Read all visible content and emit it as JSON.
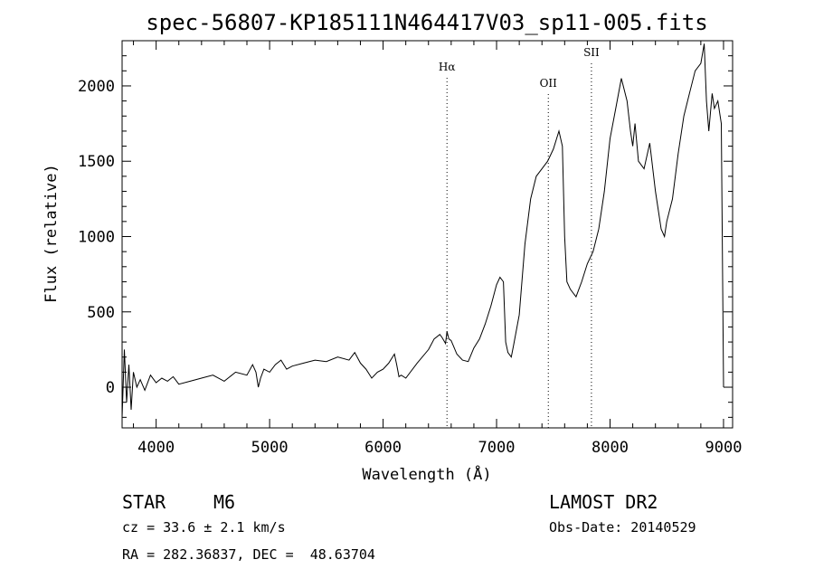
{
  "chart_data": {
    "type": "line",
    "title": "spec-56807-KP185111N464417V03_sp11-005.fits",
    "xlabel": "Wavelength (Å)",
    "ylabel": "Flux (relative)",
    "xlim": [
      3700,
      9080
    ],
    "ylim": [
      -270,
      2300
    ],
    "xticks": [
      4000,
      5000,
      6000,
      7000,
      8000,
      9000
    ],
    "yticks": [
      0,
      500,
      1000,
      1500,
      2000
    ],
    "grid": false,
    "series": [
      {
        "color": "#000000",
        "x": [
          3700,
          3720,
          3740,
          3760,
          3780,
          3800,
          3830,
          3860,
          3900,
          3950,
          4000,
          4050,
          4100,
          4150,
          4200,
          4300,
          4400,
          4500,
          4600,
          4700,
          4800,
          4850,
          4880,
          4900,
          4920,
          4950,
          5000,
          5050,
          5100,
          5150,
          5200,
          5300,
          5400,
          5500,
          5600,
          5700,
          5750,
          5800,
          5850,
          5900,
          5950,
          6000,
          6050,
          6100,
          6120,
          6140,
          6160,
          6200,
          6300,
          6400,
          6450,
          6500,
          6520,
          6550,
          6563,
          6580,
          6600,
          6650,
          6700,
          6750,
          6800,
          6850,
          6900,
          6950,
          7000,
          7030,
          7060,
          7080,
          7100,
          7130,
          7150,
          7200,
          7250,
          7300,
          7350,
          7400,
          7450,
          7500,
          7550,
          7580,
          7600,
          7620,
          7650,
          7700,
          7750,
          7800,
          7850,
          7900,
          7950,
          8000,
          8050,
          8100,
          8150,
          8180,
          8200,
          8220,
          8250,
          8300,
          8350,
          8400,
          8450,
          8480,
          8500,
          8550,
          8600,
          8650,
          8700,
          8750,
          8800,
          8830,
          8850,
          8870,
          8900,
          8920,
          8950,
          8980,
          9000
        ],
        "y": [
          -200,
          250,
          -100,
          150,
          -150,
          100,
          0,
          50,
          -20,
          80,
          30,
          60,
          40,
          70,
          20,
          40,
          60,
          80,
          40,
          100,
          80,
          150,
          100,
          0,
          60,
          120,
          100,
          150,
          180,
          120,
          140,
          160,
          180,
          170,
          200,
          180,
          230,
          160,
          120,
          60,
          100,
          120,
          160,
          220,
          150,
          70,
          80,
          60,
          160,
          250,
          320,
          350,
          330,
          290,
          370,
          320,
          310,
          220,
          180,
          170,
          260,
          320,
          420,
          540,
          680,
          730,
          700,
          300,
          230,
          200,
          280,
          480,
          950,
          1250,
          1400,
          1450,
          1500,
          1580,
          1700,
          1600,
          1000,
          700,
          650,
          600,
          700,
          820,
          900,
          1050,
          1300,
          1650,
          1850,
          2050,
          1900,
          1700,
          1600,
          1750,
          1500,
          1450,
          1620,
          1300,
          1050,
          1000,
          1100,
          1250,
          1550,
          1800,
          1950,
          2100,
          2150,
          2280,
          1900,
          1700,
          1950,
          1850,
          1900,
          1750,
          0
        ]
      }
    ],
    "annotations": [
      {
        "label": "Hα",
        "x": 6563
      },
      {
        "label": "OII",
        "x": 7456
      },
      {
        "label": "SII",
        "x": 7836
      }
    ]
  },
  "info": {
    "object_type": "STAR",
    "subclass": "M6",
    "survey": "LAMOST DR2",
    "redshift": "cz = 33.6 ± 2.1 km/s",
    "obs_date": "Obs-Date: 20140529",
    "coords": "RA = 282.36837, DEC =  48.63704"
  }
}
